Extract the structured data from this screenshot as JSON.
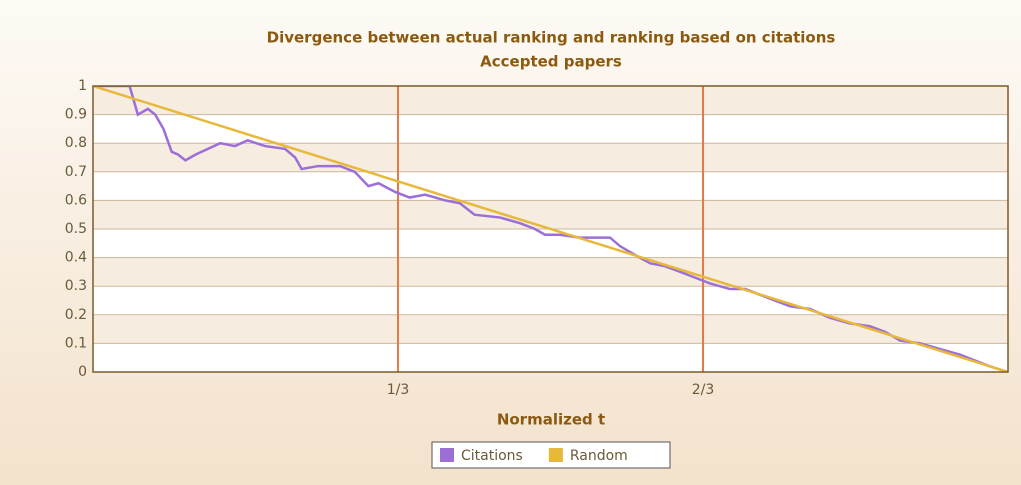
{
  "chart_data": {
    "type": "line",
    "title": "Divergence between actual ranking and ranking based on citations",
    "subtitle": "Accepted papers",
    "x_label": "Normalized t",
    "xlim": [
      0,
      1
    ],
    "xticks": [
      {
        "value": 0.3333,
        "label": "1/3"
      },
      {
        "value": 0.6667,
        "label": "2/3"
      }
    ],
    "ylim": [
      0,
      1
    ],
    "yticks": [
      0,
      0.1,
      0.2,
      0.3,
      0.4,
      0.5,
      0.6,
      0.7,
      0.8,
      0.9,
      1
    ],
    "grid": true,
    "legend": "bottom",
    "series": [
      {
        "name": "Citations",
        "color": "#9c6fd6",
        "x": [
          0,
          0.04,
          0.049,
          0.06,
          0.068,
          0.077,
          0.086,
          0.093,
          0.101,
          0.112,
          0.139,
          0.155,
          0.169,
          0.188,
          0.21,
          0.221,
          0.228,
          0.246,
          0.27,
          0.286,
          0.301,
          0.312,
          0.33,
          0.346,
          0.363,
          0.385,
          0.401,
          0.417,
          0.445,
          0.467,
          0.483,
          0.494,
          0.51,
          0.532,
          0.565,
          0.576,
          0.592,
          0.609,
          0.625,
          0.642,
          0.658,
          0.674,
          0.696,
          0.713,
          0.729,
          0.745,
          0.762,
          0.784,
          0.805,
          0.827,
          0.849,
          0.866,
          0.882,
          0.904,
          0.926,
          0.948,
          0.964,
          0.98,
          1
        ],
        "values": [
          1,
          1,
          0.9,
          0.92,
          0.9,
          0.85,
          0.77,
          0.76,
          0.74,
          0.76,
          0.8,
          0.79,
          0.81,
          0.79,
          0.78,
          0.75,
          0.71,
          0.72,
          0.72,
          0.7,
          0.65,
          0.66,
          0.63,
          0.61,
          0.62,
          0.6,
          0.59,
          0.55,
          0.54,
          0.52,
          0.5,
          0.48,
          0.48,
          0.47,
          0.47,
          0.44,
          0.41,
          0.38,
          0.37,
          0.35,
          0.33,
          0.31,
          0.29,
          0.29,
          0.27,
          0.25,
          0.23,
          0.22,
          0.19,
          0.17,
          0.16,
          0.14,
          0.11,
          0.1,
          0.08,
          0.06,
          0.04,
          0.02,
          0
        ]
      },
      {
        "name": "Random",
        "color": "#e8b83a",
        "x": [
          0,
          1
        ],
        "values": [
          1,
          0
        ]
      }
    ]
  }
}
